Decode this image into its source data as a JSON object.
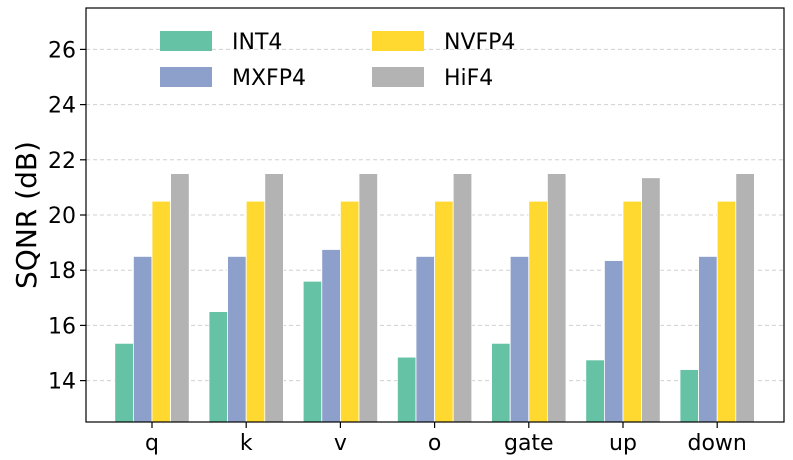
{
  "chart_data": {
    "type": "bar",
    "title": "",
    "xlabel": "",
    "ylabel": "SQNR (dB)",
    "ylim": [
      12.5,
      27.5
    ],
    "yticks": [
      14,
      16,
      18,
      20,
      22,
      24,
      26
    ],
    "grid": true,
    "legend_position": "top",
    "categories": [
      "q",
      "k",
      "v",
      "o",
      "gate",
      "up",
      "down"
    ],
    "series": [
      {
        "name": "INT4",
        "color": "#66c2a5",
        "values": [
          15.35,
          16.5,
          17.6,
          14.85,
          15.35,
          14.75,
          14.4
        ]
      },
      {
        "name": "MXFP4",
        "color": "#8da0cb",
        "values": [
          18.5,
          18.5,
          18.75,
          18.5,
          18.5,
          18.35,
          18.5
        ]
      },
      {
        "name": "NVFP4",
        "color": "#ffd92f",
        "values": [
          20.5,
          20.5,
          20.5,
          20.5,
          20.5,
          20.5,
          20.5
        ]
      },
      {
        "name": "HiF4",
        "color": "#b3b3b3",
        "values": [
          21.5,
          21.5,
          21.5,
          21.5,
          21.5,
          21.35,
          21.5
        ]
      }
    ]
  }
}
